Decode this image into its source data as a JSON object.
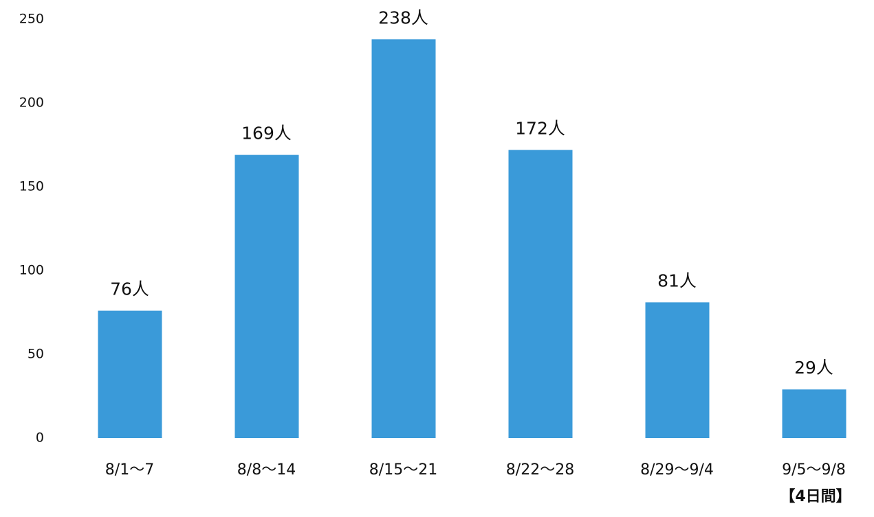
{
  "chart_data": {
    "type": "bar",
    "categories": [
      "8/1～7",
      "8/8～14",
      "8/15～21",
      "8/22～28",
      "8/29～9/4",
      "9/5～9/8"
    ],
    "values": [
      76,
      169,
      238,
      172,
      81,
      29
    ],
    "value_labels": [
      "76人",
      "169人",
      "238人",
      "172人",
      "81人",
      "29人"
    ],
    "annotation": "【4日間】",
    "color": "#3a9ad9",
    "ylim": [
      0,
      250
    ],
    "yticks": [
      0,
      50,
      100,
      150,
      200,
      250
    ],
    "grid": false
  }
}
